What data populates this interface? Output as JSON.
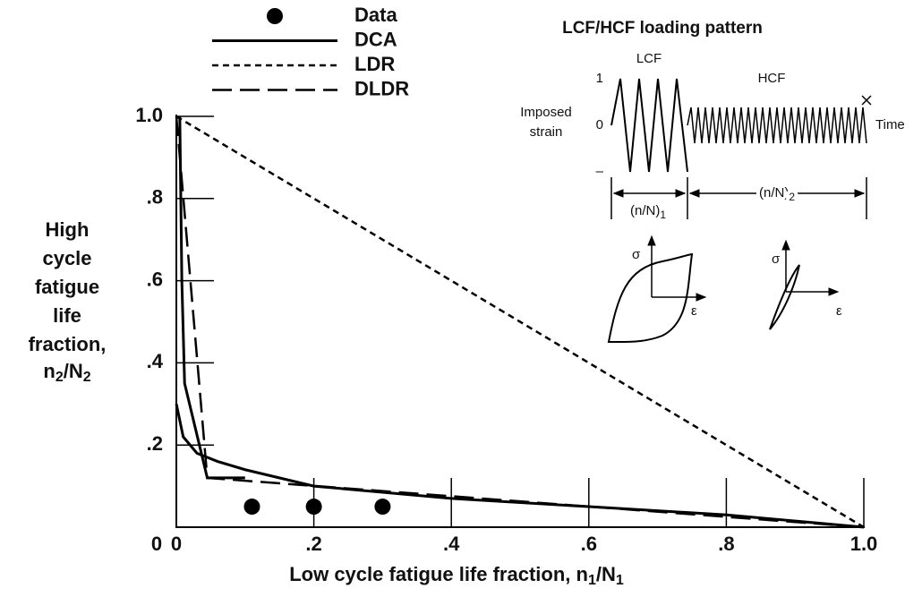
{
  "chart_data": {
    "type": "line",
    "x_label": [
      "Low cycle fatigue life fraction, n",
      "1",
      "/N",
      "1"
    ],
    "y_label": {
      "lines": [
        "High",
        "cycle",
        "fatigue",
        "life",
        "fraction,"
      ],
      "last": [
        "n",
        "2",
        "/N",
        "2"
      ]
    },
    "xlim": [
      0,
      1
    ],
    "ylim": [
      0,
      1
    ],
    "xticks": [
      0,
      {
        "value": 0.2,
        "label": ".2"
      },
      {
        "value": 0.4,
        "label": ".4"
      },
      {
        "value": 0.6,
        "label": ".6"
      },
      {
        "value": 0.8,
        "label": ".8"
      },
      {
        "value": 1,
        "label": "1.0"
      }
    ],
    "yticks": [
      0,
      {
        "value": 0.2,
        "label": ".2"
      },
      {
        "value": 0.4,
        "label": ".4"
      },
      {
        "value": 0.6,
        "label": ".6"
      },
      {
        "value": 0.8,
        "label": ".8"
      },
      {
        "value": 1,
        "label": "1.0"
      }
    ],
    "series": [
      {
        "name": "Data",
        "kind": "scatter",
        "color": "#000000",
        "x": [
          0.11,
          0.2,
          0.3
        ],
        "values": [
          0.05,
          0.05,
          0.05
        ]
      },
      {
        "name": "DCA",
        "kind": "solid",
        "color": "#000000",
        "x": [
          0.005,
          0.008,
          0.012,
          0.045,
          0.1,
          null,
          0,
          0.01,
          0.03,
          0.06,
          0.1,
          0.2,
          0.4,
          0.6,
          0.8,
          1
        ],
        "values": [
          1,
          0.6,
          0.35,
          0.12,
          0.12,
          null,
          0.3,
          0.22,
          0.18,
          0.16,
          0.14,
          0.1,
          0.07,
          0.05,
          0.03,
          0
        ]
      },
      {
        "name": "LDR",
        "kind": "dotted",
        "color": "#000000",
        "x": [
          0,
          1
        ],
        "values": [
          1,
          0
        ]
      },
      {
        "name": "DLDR",
        "kind": "dashed",
        "color": "#000000",
        "x": [
          0,
          0.045,
          1
        ],
        "values": [
          1,
          0.12,
          0
        ]
      }
    ],
    "inset": {
      "title": "LCF/HCF loading pattern",
      "lcf_label": "LCF",
      "hcf_label": "HCF",
      "strain_ticks": [
        "1",
        "0",
        "–"
      ],
      "y_label_lines": [
        "Imposed",
        "strain"
      ],
      "x_label": "Time",
      "lcf_span": [
        "(n/N)",
        "1"
      ],
      "hcf_span": [
        "(n/N)",
        "2"
      ],
      "stress": "σ",
      "strain": "ε"
    }
  }
}
